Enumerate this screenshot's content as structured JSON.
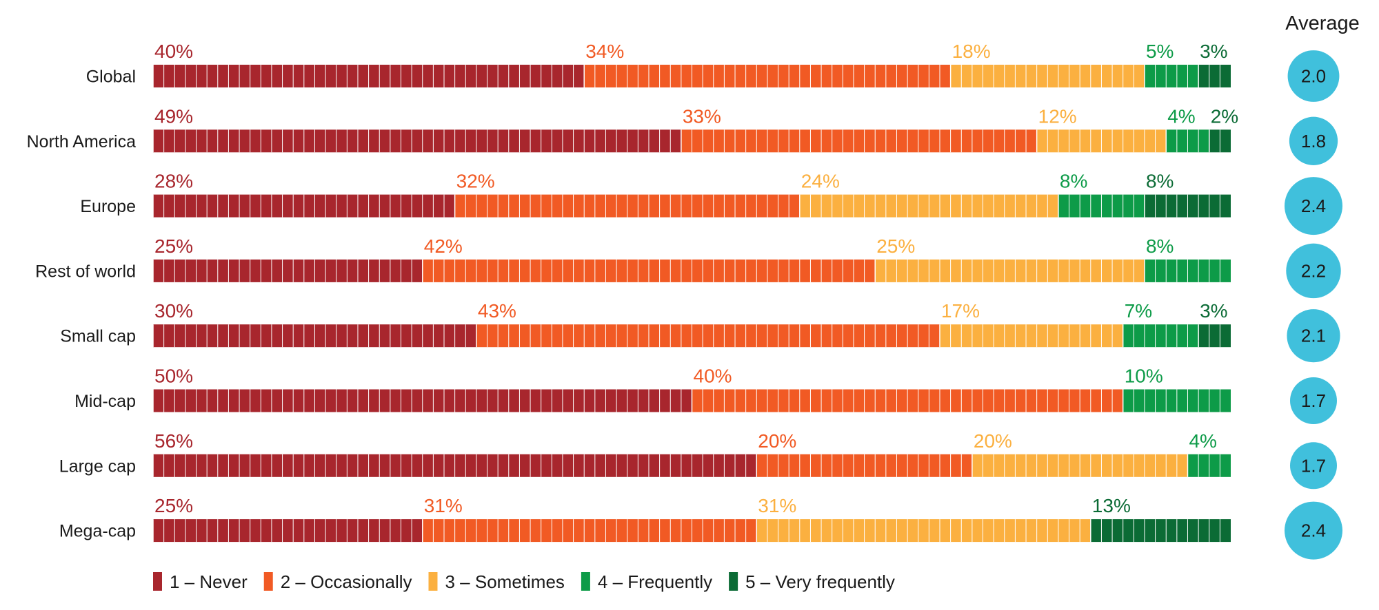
{
  "chart_data": {
    "type": "bar",
    "orientation": "horizontal",
    "stacked": true,
    "normalized": true,
    "categories": [
      "Global",
      "North America",
      "Europe",
      "Rest of world",
      "Small cap",
      "Mid-cap",
      "Large cap",
      "Mega-cap"
    ],
    "series": [
      {
        "name": "1 – Never",
        "color": "#a8262d",
        "values": [
          40,
          49,
          28,
          25,
          30,
          50,
          56,
          25
        ]
      },
      {
        "name": "2 – Occasionally",
        "color": "#f15a24",
        "values": [
          34,
          33,
          32,
          42,
          43,
          40,
          20,
          31
        ]
      },
      {
        "name": "3 – Sometimes",
        "color": "#fbb040",
        "values": [
          18,
          12,
          24,
          25,
          17,
          0,
          20,
          31
        ]
      },
      {
        "name": "4 – Frequently",
        "color": "#0d9b48",
        "values": [
          5,
          4,
          8,
          8,
          7,
          10,
          4,
          0
        ]
      },
      {
        "name": "5 – Very frequently",
        "color": "#0b6b35",
        "values": [
          3,
          2,
          8,
          0,
          3,
          0,
          0,
          13
        ]
      }
    ],
    "data_labels": [
      [
        "40%",
        "34%",
        "18%",
        "5%",
        "3%"
      ],
      [
        "49%",
        "33%",
        "12%",
        "4%",
        "2%"
      ],
      [
        "28%",
        "32%",
        "24%",
        "8%",
        "8%"
      ],
      [
        "25%",
        "42%",
        "25%",
        "8%",
        ""
      ],
      [
        "30%",
        "43%",
        "17%",
        "7%",
        "3%"
      ],
      [
        "50%",
        "40%",
        "",
        "10%",
        ""
      ],
      [
        "56%",
        "20%",
        "20%",
        "4%",
        ""
      ],
      [
        "25%",
        "31%",
        "31%",
        "",
        "13%"
      ]
    ],
    "average": {
      "heading": "Average",
      "values": [
        "2.0",
        "1.8",
        "2.4",
        "2.2",
        "2.1",
        "1.7",
        "1.7",
        "2.4"
      ],
      "color": "#40c0dc"
    },
    "legend_position": "bottom-left",
    "segment_unit": 1,
    "title": "",
    "xlabel": "",
    "ylabel": ""
  }
}
